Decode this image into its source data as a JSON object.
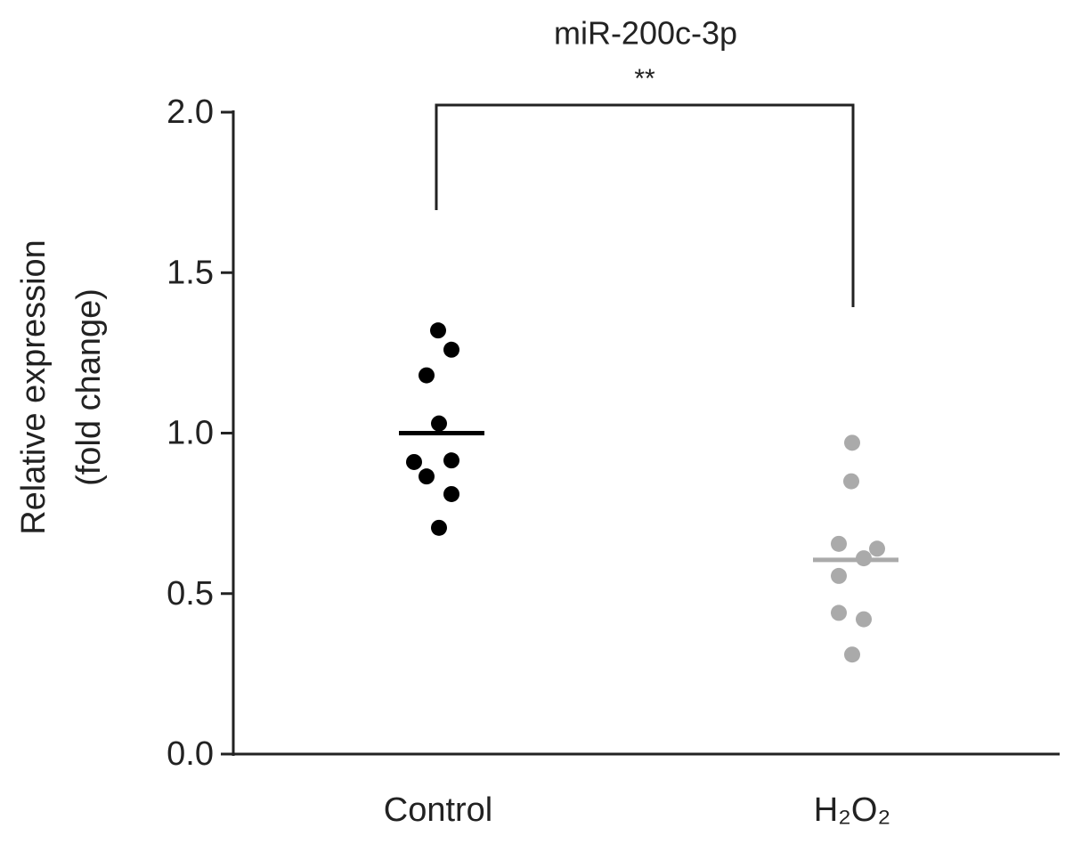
{
  "chart_data": {
    "type": "strip",
    "title": "miR-200c-3p",
    "ylabel": [
      "Relative expression",
      "(fold change)"
    ],
    "annotation": "**",
    "categories": [
      "Control",
      "H₂O₂"
    ],
    "series": [
      {
        "color": "#000000",
        "values": [
          1.32,
          1.26,
          1.18,
          1.03,
          0.91,
          0.915,
          0.865,
          0.81,
          0.705
        ],
        "mean": 1.0
      },
      {
        "color": "#aaaaaa",
        "values": [
          0.97,
          0.85,
          0.655,
          0.64,
          0.61,
          0.555,
          0.44,
          0.42,
          0.31
        ],
        "mean": 0.605
      }
    ],
    "ylim": [
      0,
      2
    ],
    "yticks": [
      {
        "value": 0,
        "label": "0.0"
      },
      0.5,
      {
        "value": 1,
        "label": "1.0"
      },
      1.5,
      {
        "value": 2,
        "label": "2.0"
      }
    ]
  }
}
